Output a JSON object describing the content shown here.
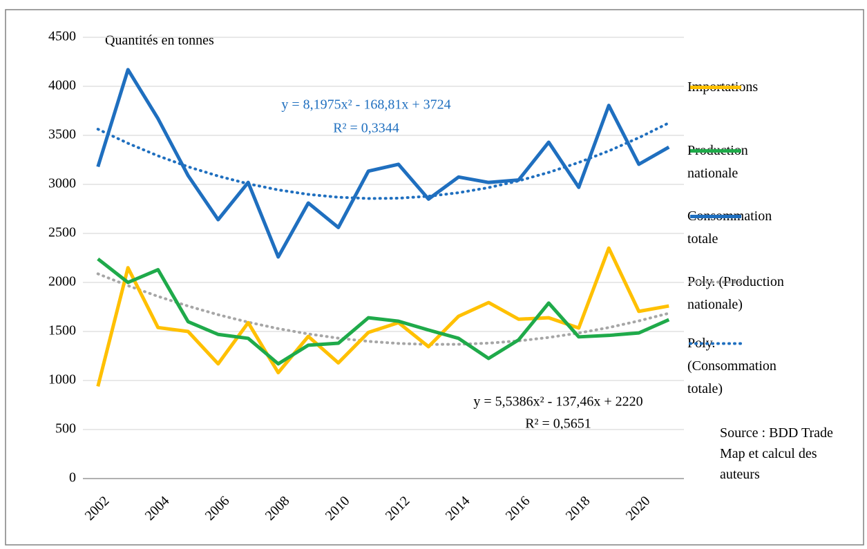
{
  "chart_data": {
    "type": "line",
    "annotations": [
      "Quantités en tonnes",
      "y = 8,1975x² - 168,81x + 3724",
      "R² = 0,3344",
      "y = 5,5386x² - 137,46x + 2220",
      "R² = 0,5651",
      "Source : BDD Trade Map et calcul des auteurs"
    ],
    "categories": [
      "2002",
      null,
      "2004",
      null,
      "2006",
      null,
      "2008",
      null,
      "2010",
      null,
      "2012",
      null,
      "2014",
      null,
      "2016",
      null,
      "2018",
      null,
      "2020",
      null
    ],
    "series": [
      {
        "name": "Importations",
        "color": "#ffc000",
        "style": "solid",
        "values": [
          940,
          2150,
          1540,
          1500,
          1170,
          1590,
          1080,
          1450,
          1180,
          1490,
          1590,
          1345,
          1655,
          1795,
          1625,
          1640,
          1535,
          2350,
          1705,
          1760
        ]
      },
      {
        "name": "Production nationale",
        "color": "#1faa4a",
        "style": "solid",
        "values": [
          2240,
          2000,
          2130,
          1600,
          1470,
          1430,
          1170,
          1360,
          1380,
          1640,
          1605,
          1515,
          1430,
          1225,
          1415,
          1790,
          1445,
          1460,
          1485,
          1620
        ]
      },
      {
        "name": "Consommation totale",
        "color": "#1f6fbf",
        "style": "solid",
        "values": [
          3180,
          4170,
          3670,
          3090,
          2640,
          3020,
          2260,
          2810,
          2560,
          3135,
          3205,
          2850,
          3075,
          3020,
          3045,
          3430,
          2970,
          3805,
          3205,
          3380
        ]
      },
      {
        "name": "Poly. (Production nationale)",
        "color": "#a6a6a6",
        "style": "dotted",
        "values": [
          2088,
          1967,
          1858,
          1759,
          1671,
          1595,
          1529,
          1475,
          1432,
          1399,
          1378,
          1368,
          1369,
          1381,
          1404,
          1439,
          1484,
          1540,
          1608,
          1686
        ]
      },
      {
        "name": "Poly. (Consommation totale)",
        "color": "#1f6fbf",
        "style": "dotted",
        "values": [
          3563,
          3419,
          3291,
          3180,
          3085,
          3006,
          2944,
          2898,
          2869,
          2856,
          2859,
          2879,
          2915,
          2967,
          3036,
          3122,
          3223,
          3341,
          3476,
          3627
        ]
      }
    ],
    "ylim": [
      0,
      4500
    ],
    "yticks": [
      0,
      500,
      1000,
      1500,
      2000,
      2500,
      3000,
      3500,
      4000,
      4500
    ],
    "grid": true
  }
}
